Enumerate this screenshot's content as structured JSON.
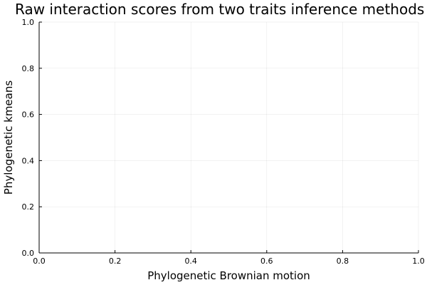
{
  "chart_data": {
    "type": "scatter",
    "title": "Raw interaction scores from two traits inference methods",
    "xlabel": "Phylogenetic Brownian motion",
    "ylabel": "Phylogenetic kmeans",
    "xlim": [
      0,
      1
    ],
    "ylim": [
      0,
      1
    ],
    "x_ticks": [
      "0.0",
      "0.2",
      "0.4",
      "0.6",
      "0.8",
      "1.0"
    ],
    "y_ticks": [
      "0.0",
      "0.2",
      "0.4",
      "0.6",
      "0.8",
      "1.0"
    ],
    "grid": true,
    "series": [],
    "colors": {
      "axis": "#000000",
      "grid": "#e6e6e6",
      "background": "#ffffff"
    }
  }
}
